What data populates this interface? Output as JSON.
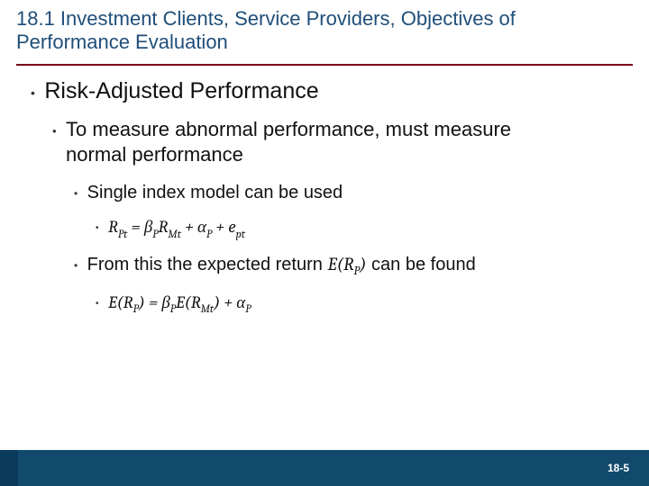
{
  "colors": {
    "title": "#1f4e79",
    "rule": "#7a0019",
    "text": "#111111",
    "footer_bar": "#124a6e",
    "footer_left": "#0a3b5c",
    "background": "#ffffff"
  },
  "header": {
    "title": "18.1 Investment Clients, Service Providers, Objectives of Performance Evaluation"
  },
  "bullets": {
    "l1": "Risk-Adjusted Performance",
    "l2": "To measure abnormal performance, must measure normal performance",
    "l3a": "Single index model can be used",
    "l3b_prefix": "From this the expected return ",
    "l3b_math": "E(R",
    "l3b_sub": "P",
    "l3b_math_close": ")",
    "l3b_suffix": "  can be found"
  },
  "formulas": {
    "f1": {
      "lhs_base": "R",
      "lhs_sub": "Pt",
      "eq": " = ",
      "t1_coef": "β",
      "t1_sub": "P",
      "t1_base": "R",
      "t1_bsub": "Mt",
      "plus1": " + ",
      "t2_base": "α",
      "t2_sub": "P",
      "plus2": " + ",
      "t3_base": "e",
      "t3_sub": "pt"
    },
    "f2": {
      "lhs_E": "E(",
      "lhs_base": "R",
      "lhs_sub": "P",
      "lhs_close": ")",
      "eq": " = ",
      "t1_coef": "β",
      "t1_sub": "P",
      "t1_E": "E(",
      "t1_base": "R",
      "t1_bsub": "Mt",
      "t1_close": ")",
      "plus": " + ",
      "t2_base": "α",
      "t2_sub": "P"
    }
  },
  "footer": {
    "page": "18-5"
  }
}
